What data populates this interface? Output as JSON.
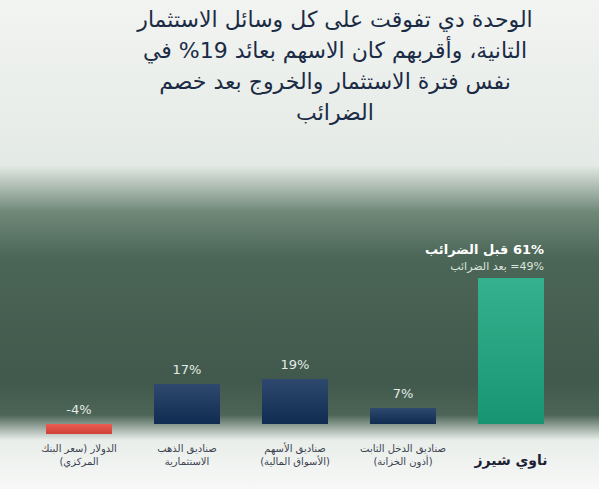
{
  "chart_data": {
    "type": "bar",
    "title": "الوحدة دي تفوقت على كل وسائل الاستثمار التانية، وأقربهم كان الاسهم بعائد 19% في نفس فترة الاستثمار والخروج بعد خصم الضرائب",
    "categories": [
      "الدولار (سعر البنك المركزي)",
      "صناديق الذهب الاستثمارية",
      "صناديق الأسهم (الأسواق المالية)",
      "صناديق الدخل الثابت (أذون الخزانة)",
      "ناوي شيرز"
    ],
    "values": [
      -4,
      17,
      19,
      7,
      61
    ],
    "value_labels": [
      "-4%",
      "17%",
      "19%",
      "7%",
      "61% قبل الضرائب"
    ],
    "annotations": [
      "49%= بعد الضرائب"
    ],
    "colors": [
      "#e8473c",
      "#12305a",
      "#12305a",
      "#12305a",
      "#1aa67f"
    ],
    "ylim": [
      -4,
      61
    ],
    "data_labels": true,
    "tick_labels": "x",
    "grid": false
  }
}
